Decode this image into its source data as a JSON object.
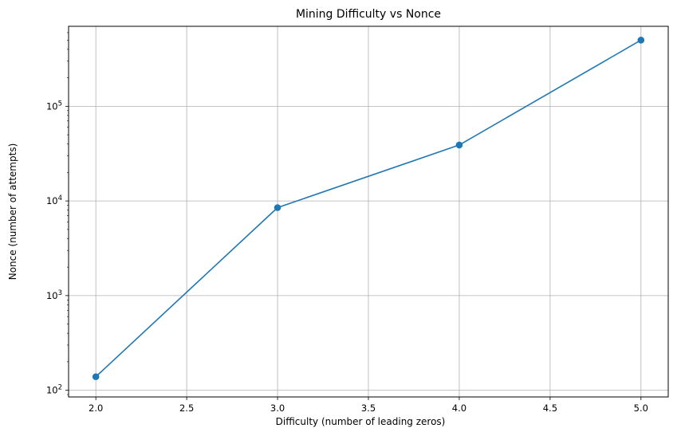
{
  "chart_data": {
    "type": "line",
    "title": "Mining Difficulty vs Nonce",
    "xlabel": "Difficulty (number of leading zeros)",
    "ylabel": "Nonce (number of attempts)",
    "xlim": [
      1.85,
      5.15
    ],
    "ylim": [
      85,
      700000
    ],
    "yscale": "log",
    "grid": true,
    "x_ticks": [
      2.0,
      2.5,
      3.0,
      3.5,
      4.0,
      4.5,
      5.0
    ],
    "x_tick_labels": [
      "2.0",
      "2.5",
      "3.0",
      "3.5",
      "4.0",
      "4.5",
      "5.0"
    ],
    "y_ticks": [
      100,
      1000,
      10000,
      100000
    ],
    "y_tick_labels": [
      {
        "base": "10",
        "exp": "2"
      },
      {
        "base": "10",
        "exp": "3"
      },
      {
        "base": "10",
        "exp": "4"
      },
      {
        "base": "10",
        "exp": "5"
      }
    ],
    "series": [
      {
        "color": "#1f77b4",
        "marker": "circle",
        "x": [
          2,
          3,
          4,
          5
        ],
        "y": [
          139,
          8500,
          39000,
          500000
        ]
      }
    ]
  }
}
